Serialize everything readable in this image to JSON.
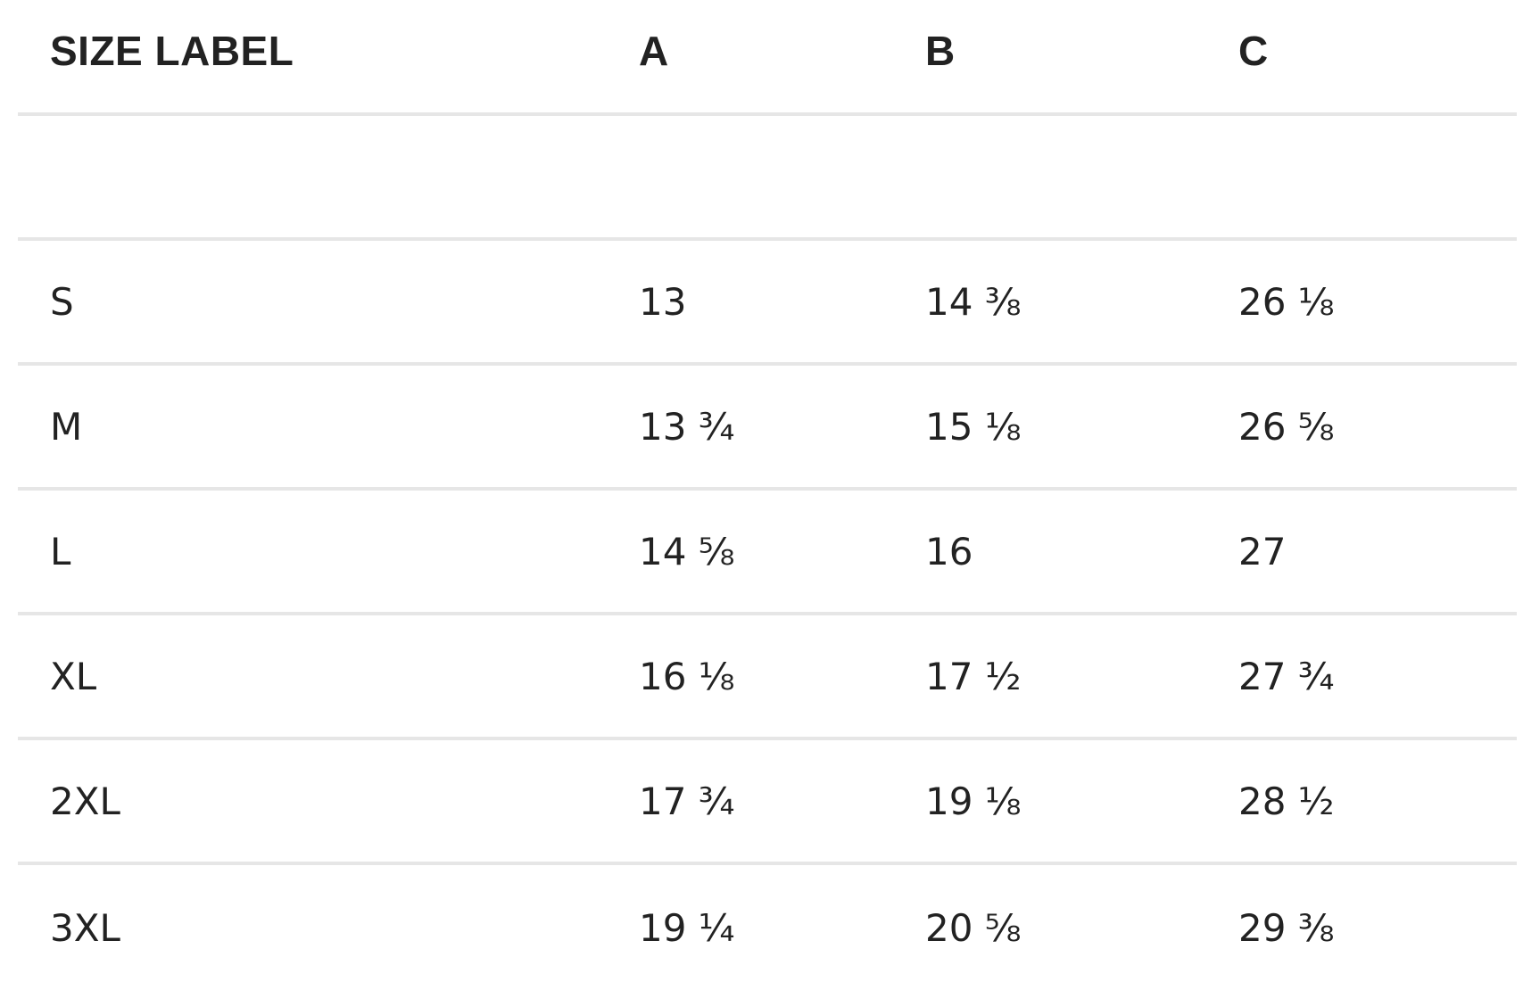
{
  "table": {
    "headers": [
      "SIZE LABEL",
      "A",
      "B",
      "C"
    ],
    "rows": [
      [
        "S",
        "13",
        "14 ⅜",
        "26 ⅛"
      ],
      [
        "M",
        "13 ¾",
        "15 ⅛",
        "26 ⅝"
      ],
      [
        "L",
        "14 ⅝",
        "16",
        "27"
      ],
      [
        "XL",
        "16 ⅛",
        "17 ½",
        "27 ¾"
      ],
      [
        "2XL",
        "17 ¾",
        "19 ⅛",
        "28 ½"
      ],
      [
        "3XL",
        "19 ¼",
        "20 ⅝",
        "29 ⅜"
      ]
    ]
  }
}
